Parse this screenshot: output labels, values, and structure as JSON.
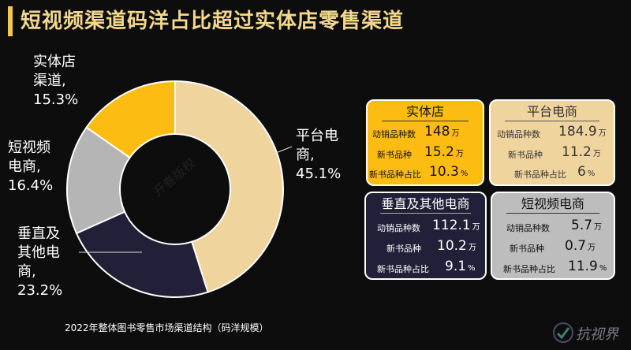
{
  "title": "短视频渠道码洋占比超过实体店零售渠道",
  "caption": "2022年整体图书零售市场渠道结构（码洋规模）",
  "watermark_text": "开卷版权",
  "logo_text": "抗视界",
  "chart_data": {
    "type": "pie",
    "variant": "donut",
    "slices": [
      {
        "name": "平台电商",
        "value": 45.1,
        "color": "#f0d49e",
        "label_lines": [
          "平台电",
          "商,",
          "45.1%"
        ]
      },
      {
        "name": "垂直及其他电商",
        "value": 23.2,
        "color": "#212038",
        "label_lines": [
          "垂直及",
          "其他电",
          "商,",
          "23.2%"
        ]
      },
      {
        "name": "短视频电商",
        "value": 16.4,
        "color": "#b5b5b5",
        "label_lines": [
          "短视频",
          "电商,",
          "16.4%"
        ]
      },
      {
        "name": "实体店渠道",
        "value": 15.3,
        "color": "#fdbc12",
        "label_lines": [
          "实体店",
          "渠道,",
          "15.3%"
        ]
      }
    ]
  },
  "cards": {
    "a": {
      "title": "实体店",
      "rows": [
        {
          "label": "动销品种数",
          "value": "148",
          "unit": "万"
        },
        {
          "label": "新书品种",
          "value": "15.2",
          "unit": "万"
        },
        {
          "label": "新书品种占比",
          "value": "10.3",
          "unit": "%"
        }
      ]
    },
    "b": {
      "title": "平台电商",
      "rows": [
        {
          "label": "动销品种数",
          "value": "184.9",
          "unit": "万"
        },
        {
          "label": "新书品种",
          "value": "11.2",
          "unit": "万"
        },
        {
          "label": "新书品种占比",
          "value": "6",
          "unit": "%"
        }
      ]
    },
    "c": {
      "title": "垂直及其他电商",
      "rows": [
        {
          "label": "动销品种数",
          "value": "112.1",
          "unit": "万"
        },
        {
          "label": "新书品种",
          "value": "10.2",
          "unit": "万"
        },
        {
          "label": "新书品种占比",
          "value": "9.1",
          "unit": "%"
        }
      ]
    },
    "d": {
      "title": "短视频电商",
      "rows": [
        {
          "label": "动销品种数",
          "value": "5.7",
          "unit": "万"
        },
        {
          "label": "新书品种",
          "value": "0.7",
          "unit": "万"
        },
        {
          "label": "新书品种占比",
          "value": "11.9",
          "unit": "%"
        }
      ]
    }
  }
}
